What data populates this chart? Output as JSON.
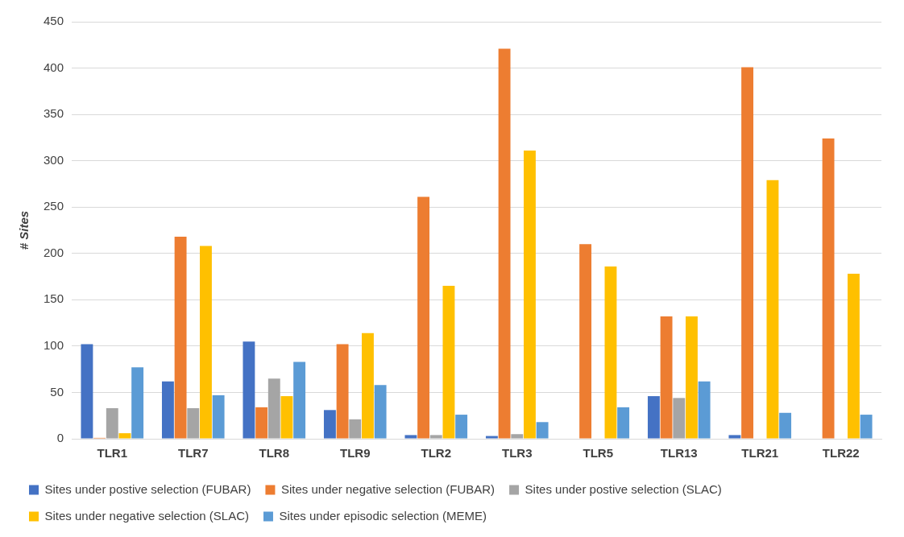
{
  "chart_data": {
    "type": "bar",
    "ylabel": "# Sites",
    "categories": [
      "TLR1",
      "TLR7",
      "TLR8",
      "TLR9",
      "TLR2",
      "TLR3",
      "TLR5",
      "TLR13",
      "TLR21",
      "TLR22"
    ],
    "series": [
      {
        "name": "Sites under postive selection (FUBAR)",
        "color": "#4472c4",
        "values": [
          102,
          62,
          105,
          31,
          4,
          3,
          0,
          46,
          4,
          0
        ]
      },
      {
        "name": "Sites under negative selection (FUBAR)",
        "color": "#ed7d31",
        "values": [
          1,
          218,
          34,
          102,
          261,
          421,
          210,
          132,
          401,
          324
        ]
      },
      {
        "name": "Sites under postive selection (SLAC)",
        "color": "#a5a5a5",
        "values": [
          33,
          33,
          65,
          21,
          4,
          5,
          0,
          44,
          0,
          null
        ]
      },
      {
        "name": "Sites under negative selection (SLAC)",
        "color": "#ffc000",
        "values": [
          6,
          208,
          46,
          114,
          165,
          311,
          186,
          132,
          279,
          178
        ]
      },
      {
        "name": "Sites under episodic selection (MEME)",
        "color": "#5b9bd5",
        "values": [
          77,
          47,
          83,
          58,
          26,
          18,
          34,
          62,
          28,
          26
        ]
      }
    ],
    "ylim": [
      0,
      450
    ],
    "yticks": [
      0,
      50,
      100,
      150,
      200,
      250,
      300,
      350,
      400,
      450
    ],
    "grid": "y",
    "legend": "bottom"
  }
}
